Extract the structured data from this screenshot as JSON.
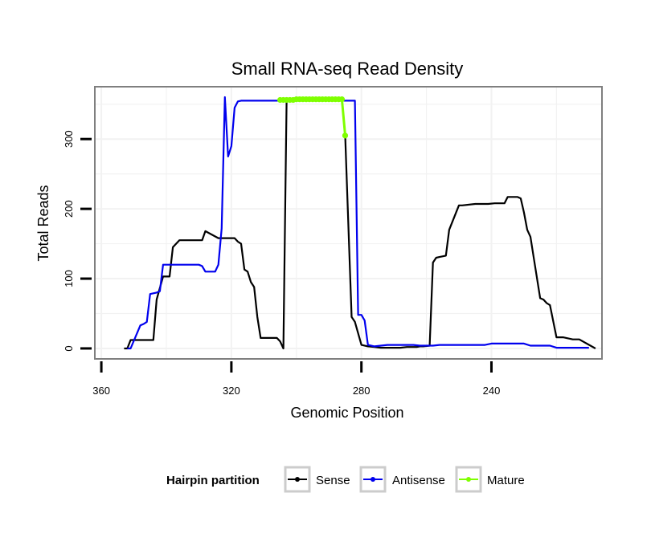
{
  "chart_data": {
    "type": "line",
    "title": "Small RNA-seq Read Density",
    "xlabel": "Genomic Position",
    "ylabel": "Total Reads",
    "xlim": [
      362,
      206
    ],
    "ylim": [
      -15,
      375
    ],
    "x_reversed": true,
    "x_ticks": [
      360,
      320,
      280,
      240
    ],
    "x_tick_labels": [
      "360",
      "320",
      "280",
      "240"
    ],
    "y_ticks": [
      0,
      100,
      200,
      300
    ],
    "y_tick_labels": [
      "0",
      "100",
      "200",
      "300"
    ],
    "grid": true,
    "legend": {
      "title": "Hairpin partition",
      "position": "bottom",
      "entries": [
        "Sense",
        "Antisense",
        "Mature"
      ]
    },
    "colors": {
      "Sense": "#000000",
      "Antisense": "#0000ee",
      "Mature": "#7fff00",
      "panel_border": "#7f7f7f",
      "grid": "#f2f2f2"
    },
    "series": [
      {
        "name": "Sense",
        "x": [
          353,
          352,
          351,
          349,
          345,
          344,
          343,
          341,
          340,
          339,
          338,
          336,
          330,
          329,
          328,
          324,
          323,
          322,
          321,
          320,
          319,
          318,
          317,
          316,
          315,
          314,
          313,
          312,
          311,
          310,
          306,
          305,
          304,
          303,
          302,
          301,
          300,
          299,
          298,
          297,
          295,
          294,
          293,
          292,
          291,
          290,
          289,
          288,
          287,
          286,
          285,
          283,
          282,
          280,
          278,
          276,
          274,
          272,
          270,
          268,
          266,
          264,
          263,
          262,
          261,
          259,
          258,
          257,
          256,
          254,
          253,
          250,
          249,
          245,
          244,
          242,
          241,
          239,
          238,
          236,
          235,
          233,
          232,
          231,
          230,
          229,
          228,
          227,
          225,
          224,
          223,
          222,
          220,
          218,
          216,
          215,
          214,
          213,
          208
        ],
        "y": [
          0,
          0,
          12,
          12,
          12,
          12,
          70,
          103,
          103,
          103,
          145,
          155,
          155,
          155,
          168,
          158,
          158,
          158,
          158,
          158,
          158,
          153,
          150,
          113,
          110,
          95,
          88,
          45,
          15,
          15,
          15,
          10,
          0,
          355,
          356,
          356,
          356,
          356,
          356,
          356,
          356,
          356,
          357,
          357,
          357,
          357,
          357,
          357,
          357,
          357,
          305,
          45,
          38,
          5,
          3,
          2,
          1,
          1,
          1,
          1,
          2,
          2,
          2,
          3,
          3,
          4,
          123,
          130,
          131,
          133,
          170,
          205,
          205,
          207,
          207,
          207,
          207,
          208,
          208,
          208,
          217,
          217,
          217,
          215,
          195,
          170,
          160,
          130,
          72,
          70,
          65,
          62,
          16,
          16,
          14,
          13,
          13,
          13,
          0
        ]
      },
      {
        "name": "Antisense",
        "x": [
          352,
          351,
          348,
          347,
          346,
          345,
          344,
          343,
          342,
          341,
          340,
          339,
          338,
          337,
          331,
          330,
          329,
          328,
          327,
          326,
          325,
          324,
          323,
          322,
          321,
          320,
          319,
          318,
          317,
          316,
          315,
          314,
          313,
          312,
          311,
          310,
          309,
          308,
          306,
          305,
          304,
          303,
          302,
          301,
          300,
          299,
          298,
          296,
          295,
          294,
          293,
          292,
          291,
          290,
          289,
          288,
          287,
          286,
          285,
          284,
          283,
          282,
          281,
          280,
          279,
          278,
          276,
          274,
          272,
          270,
          268,
          264,
          262,
          260,
          258,
          256,
          254,
          250,
          248,
          244,
          242,
          240,
          238,
          236,
          234,
          232,
          230,
          228,
          226,
          224,
          222,
          220,
          218,
          216,
          214,
          212,
          210
        ],
        "y": [
          0,
          0,
          33,
          35,
          38,
          78,
          79,
          80,
          82,
          120,
          120,
          120,
          120,
          120,
          120,
          120,
          118,
          110,
          110,
          110,
          110,
          120,
          172,
          360,
          275,
          290,
          345,
          354,
          355,
          355,
          355,
          355,
          355,
          355,
          355,
          355,
          355,
          355,
          355,
          355,
          355,
          355,
          355,
          355,
          355,
          355,
          355,
          355,
          355,
          355,
          355,
          355,
          355,
          355,
          355,
          355,
          355,
          355,
          355,
          355,
          355,
          355,
          48,
          48,
          40,
          5,
          3,
          4,
          5,
          5,
          5,
          5,
          4,
          4,
          4,
          5,
          5,
          5,
          5,
          5,
          5,
          7,
          7,
          7,
          7,
          7,
          7,
          4,
          4,
          4,
          4,
          1,
          1,
          1,
          1,
          1,
          1
        ]
      },
      {
        "name": "Mature",
        "x": [
          305,
          304,
          303,
          302,
          301,
          300,
          299,
          298,
          297,
          296,
          295,
          294,
          293,
          292,
          291,
          290,
          289,
          288,
          287,
          286,
          285
        ],
        "y": [
          356,
          356,
          356,
          356,
          356,
          357,
          357,
          357,
          357,
          357,
          357,
          357,
          357,
          357,
          357,
          357,
          357,
          357,
          357,
          357,
          305
        ]
      }
    ]
  }
}
